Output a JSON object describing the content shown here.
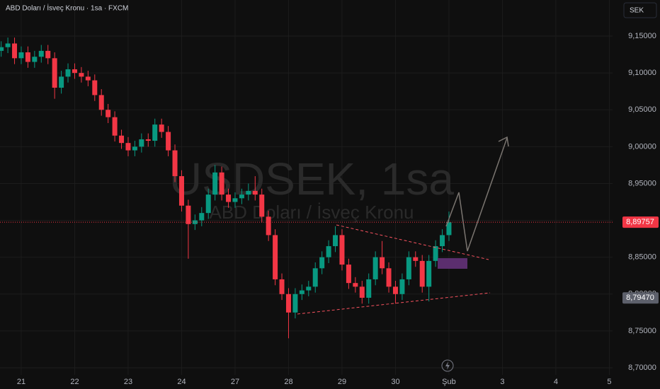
{
  "chart_data": {
    "type": "candlestick",
    "title": "ABD Doları / İsveç Kronu · 1sa · FXCM",
    "currency_button": "SEK",
    "watermark": "USDSEK, 1sa",
    "watermark_subtitle": "ABD Doları / İsveç Kronu",
    "up_color": "#089981",
    "down_color": "#f23645",
    "x": [
      -0.375,
      -0.25,
      -0.125,
      0,
      0.125,
      0.25,
      0.375,
      0.5,
      0.625,
      0.75,
      0.875,
      1,
      1.125,
      1.25,
      1.375,
      1.5,
      1.625,
      1.75,
      1.875,
      2,
      2.125,
      2.25,
      2.375,
      2.5,
      2.625,
      2.75,
      2.875,
      3,
      3.125,
      3.25,
      3.375,
      3.5,
      3.625,
      3.75,
      3.875,
      4,
      4.125,
      4.25,
      4.375,
      4.5,
      4.625,
      4.75,
      4.875,
      5,
      5.125,
      5.25,
      5.375,
      5.5,
      5.625,
      5.75,
      5.875,
      6,
      6.125,
      6.25,
      6.375,
      6.5,
      6.625,
      6.75,
      6.875,
      7,
      7.125,
      7.25,
      7.375,
      7.5,
      7.625,
      7.75,
      7.875,
      8
    ],
    "open": [
      9.13,
      9.135,
      9.14,
      9.12,
      9.128,
      9.115,
      9.122,
      9.13,
      9.12,
      9.08,
      9.095,
      9.105,
      9.1,
      9.095,
      9.09,
      9.07,
      9.05,
      9.04,
      9.015,
      9.005,
      8.995,
      9.0,
      9.01,
      9.008,
      9.03,
      9.02,
      8.995,
      8.96,
      8.92,
      8.895,
      8.9,
      8.91,
      8.935,
      8.965,
      8.935,
      8.925,
      8.93,
      8.935,
      8.94,
      8.935,
      8.905,
      8.88,
      8.82,
      8.8,
      8.775,
      8.8,
      8.805,
      8.81,
      8.835,
      8.85,
      8.865,
      8.88,
      8.84,
      8.815,
      8.81,
      8.795,
      8.82,
      8.85,
      8.835,
      8.81,
      8.8,
      8.82,
      8.85,
      8.845,
      8.81,
      8.845,
      8.865,
      8.88
    ],
    "high": [
      9.143,
      9.148,
      9.148,
      9.136,
      9.136,
      9.13,
      9.138,
      9.138,
      9.128,
      9.103,
      9.113,
      9.113,
      9.108,
      9.103,
      9.098,
      9.078,
      9.058,
      9.048,
      9.023,
      9.013,
      9.008,
      9.018,
      9.018,
      9.038,
      9.038,
      9.028,
      9.003,
      8.968,
      8.928,
      8.908,
      8.918,
      8.943,
      8.975,
      8.973,
      8.943,
      8.938,
      8.943,
      8.95,
      8.96,
      8.943,
      8.913,
      8.888,
      8.828,
      8.808,
      8.808,
      8.813,
      8.818,
      8.843,
      8.858,
      8.873,
      8.892,
      8.888,
      8.848,
      8.823,
      8.818,
      8.828,
      8.858,
      8.872,
      8.843,
      8.818,
      8.828,
      8.858,
      8.858,
      8.853,
      8.853,
      8.873,
      8.888,
      8.912
    ],
    "low": [
      9.122,
      9.127,
      9.112,
      9.112,
      9.107,
      9.107,
      9.114,
      9.112,
      9.065,
      9.072,
      9.087,
      9.092,
      9.087,
      9.082,
      9.062,
      9.042,
      9.032,
      9.007,
      8.997,
      8.987,
      8.987,
      8.992,
      9.0,
      9.0,
      9.012,
      8.987,
      8.952,
      8.912,
      8.848,
      8.887,
      8.892,
      8.902,
      8.927,
      8.927,
      8.917,
      8.917,
      8.922,
      8.927,
      8.927,
      8.897,
      8.872,
      8.812,
      8.792,
      8.74,
      8.767,
      8.792,
      8.797,
      8.802,
      8.827,
      8.842,
      8.857,
      8.832,
      8.807,
      8.802,
      8.787,
      8.787,
      8.812,
      8.827,
      8.802,
      8.787,
      8.792,
      8.812,
      8.837,
      8.802,
      8.79,
      8.837,
      8.857,
      8.872
    ],
    "close": [
      9.135,
      9.14,
      9.12,
      9.128,
      9.115,
      9.122,
      9.13,
      9.12,
      9.08,
      9.095,
      9.105,
      9.1,
      9.095,
      9.09,
      9.07,
      9.05,
      9.04,
      9.015,
      9.005,
      8.995,
      9.0,
      9.01,
      9.008,
      9.03,
      9.02,
      8.995,
      8.96,
      8.92,
      8.895,
      8.9,
      8.91,
      8.935,
      8.965,
      8.935,
      8.925,
      8.93,
      8.935,
      8.94,
      8.935,
      8.905,
      8.88,
      8.82,
      8.8,
      8.775,
      8.8,
      8.805,
      8.81,
      8.835,
      8.85,
      8.865,
      8.88,
      8.84,
      8.815,
      8.81,
      8.795,
      8.82,
      8.85,
      8.835,
      8.81,
      8.8,
      8.82,
      8.85,
      8.845,
      8.81,
      8.845,
      8.865,
      8.88,
      8.89757
    ],
    "xlim": [
      -0.397,
      11.06
    ],
    "xticks": [
      {
        "value": 0,
        "label": "21"
      },
      {
        "value": 1,
        "label": "22"
      },
      {
        "value": 2,
        "label": "23"
      },
      {
        "value": 3,
        "label": "24"
      },
      {
        "value": 4,
        "label": "27"
      },
      {
        "value": 5,
        "label": "28"
      },
      {
        "value": 6,
        "label": "29"
      },
      {
        "value": 7,
        "label": "30"
      },
      {
        "value": 8,
        "label": "Şub"
      },
      {
        "value": 9,
        "label": "3"
      },
      {
        "value": 10,
        "label": "4"
      },
      {
        "value": 11,
        "label": "5"
      }
    ],
    "ylim": [
      8.6904,
      9.199
    ],
    "yticks": [
      {
        "value": 8.7,
        "label": "8,70000"
      },
      {
        "value": 8.75,
        "label": "8,75000"
      },
      {
        "value": 8.8,
        "label": "8,80000"
      },
      {
        "value": 8.85,
        "label": "8,85000"
      },
      {
        "value": 8.9,
        "label": "8,90000"
      },
      {
        "value": 8.95,
        "label": "8,95000"
      },
      {
        "value": 9.0,
        "label": "9,00000"
      },
      {
        "value": 9.05,
        "label": "9,05000"
      },
      {
        "value": 9.1,
        "label": "9,10000"
      },
      {
        "value": 9.15,
        "label": "9,15000"
      }
    ],
    "grid": true,
    "price_lines": [
      {
        "value": 8.89757,
        "label": "8,89757",
        "color": "#f23645"
      },
      {
        "value": 8.7947,
        "label": "8,79470",
        "color": "#5d606b"
      }
    ]
  }
}
